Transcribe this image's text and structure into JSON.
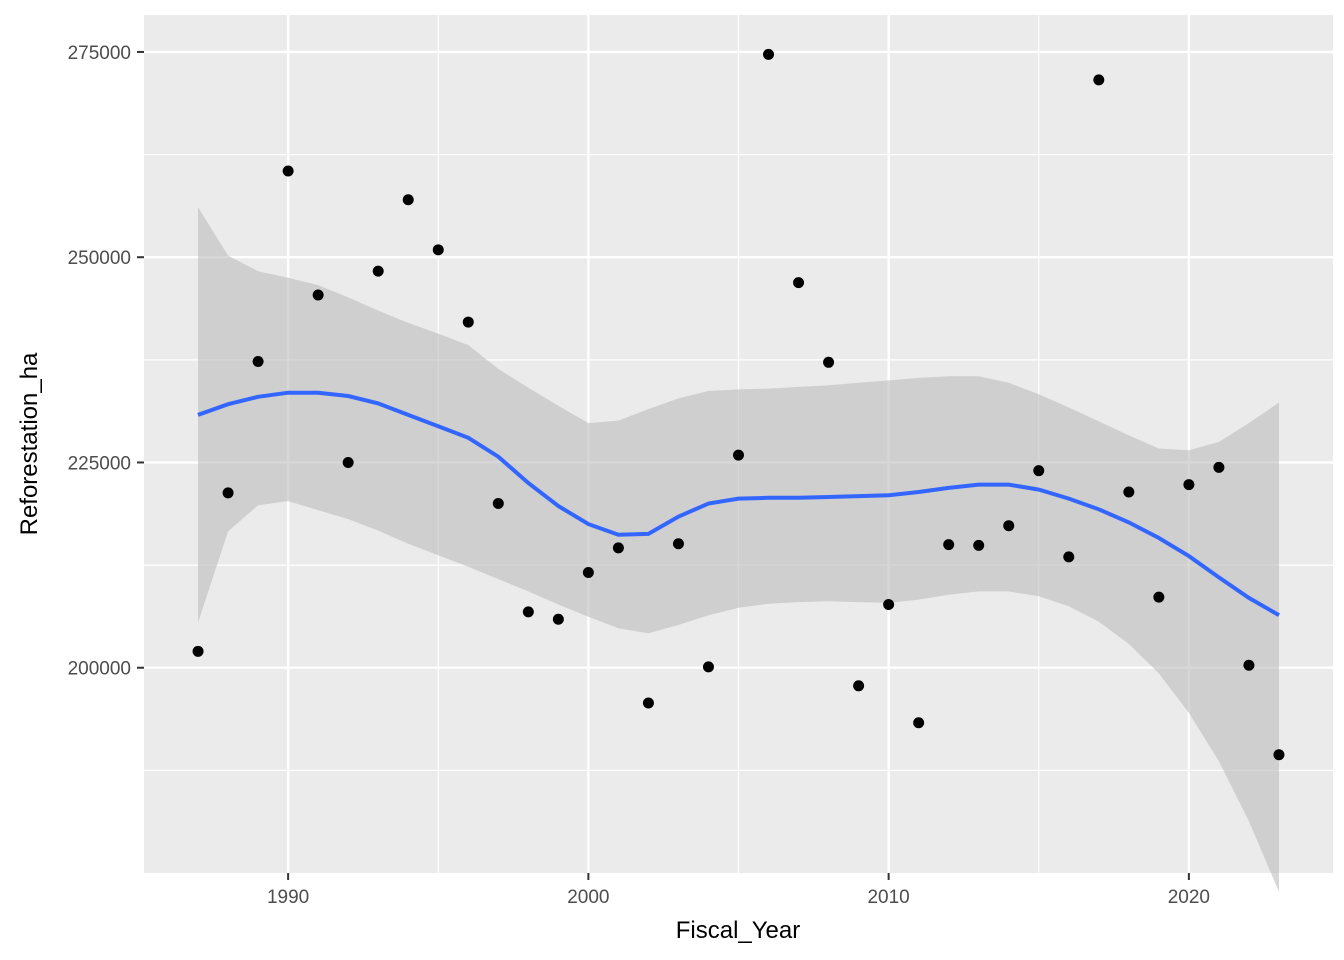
{
  "chart_data": {
    "type": "scatter",
    "title": "",
    "xlabel": "Fiscal_Year",
    "ylabel": "Reforestation_ha",
    "xlim": [
      1985.2,
      2024.8
    ],
    "ylim": [
      175000,
      279500
    ],
    "x_ticks": [
      1990,
      2000,
      2010,
      2020
    ],
    "y_ticks": [
      200000,
      225000,
      250000,
      275000
    ],
    "x_tick_labels": [
      "1990",
      "2000",
      "2010",
      "2020"
    ],
    "y_tick_labels": [
      "200000",
      "225000",
      "250000",
      "275000"
    ],
    "grid": true,
    "colors": {
      "panel": "#ebebeb",
      "grid": "#ffffff",
      "points": "#000000",
      "smooth_line": "#3366ff",
      "ribbon": "#bdbdbd"
    },
    "points": {
      "x": [
        1987,
        1988,
        1989,
        1990,
        1991,
        1992,
        1993,
        1994,
        1995,
        1996,
        1997,
        1998,
        1999,
        2000,
        2001,
        2002,
        2003,
        2004,
        2005,
        2006,
        2007,
        2008,
        2009,
        2010,
        2011,
        2012,
        2013,
        2014,
        2015,
        2016,
        2017,
        2018,
        2019,
        2020,
        2021,
        2022,
        2023
      ],
      "y": [
        202000,
        221300,
        237300,
        260500,
        245400,
        225000,
        248300,
        257000,
        250900,
        242100,
        220000,
        206800,
        205900,
        211600,
        214600,
        195700,
        215100,
        200100,
        225900,
        274700,
        246900,
        237200,
        197800,
        207700,
        193300,
        215000,
        214900,
        217300,
        224000,
        213500,
        271600,
        221400,
        208600,
        222300,
        224400,
        200300,
        189400
      ]
    },
    "smooth": {
      "x": [
        1987,
        1988,
        1989,
        1990,
        1991,
        1992,
        1993,
        1994,
        1995,
        1996,
        1997,
        1998,
        1999,
        2000,
        2001,
        2002,
        2003,
        2004,
        2005,
        2006,
        2007,
        2008,
        2009,
        2010,
        2011,
        2012,
        2013,
        2014,
        2015,
        2016,
        2017,
        2018,
        2019,
        2020,
        2021,
        2022,
        2023
      ],
      "y": [
        230800,
        232100,
        233000,
        233500,
        233500,
        233100,
        232200,
        230800,
        229400,
        228000,
        225700,
        222500,
        219700,
        217500,
        216200,
        216300,
        218400,
        220000,
        220600,
        220700,
        220700,
        220800,
        220900,
        221000,
        221400,
        221900,
        222300,
        222300,
        221700,
        220600,
        219300,
        217700,
        215800,
        213600,
        211000,
        208500,
        206400
      ],
      "lower": [
        205500,
        216600,
        219800,
        220300,
        219200,
        218100,
        216700,
        215100,
        213700,
        212300,
        210800,
        209300,
        207700,
        206200,
        204800,
        204200,
        205200,
        206400,
        207300,
        207800,
        208000,
        208100,
        208000,
        207900,
        208300,
        208900,
        209300,
        209300,
        208700,
        207500,
        205600,
        202900,
        199300,
        194500,
        188600,
        181300,
        172700
      ],
      "upper": [
        256100,
        250200,
        248300,
        247500,
        246600,
        245100,
        243500,
        242000,
        240700,
        239300,
        236400,
        234100,
        231900,
        229800,
        230100,
        231500,
        232800,
        233700,
        233900,
        234000,
        234200,
        234400,
        234700,
        235000,
        235300,
        235500,
        235500,
        234700,
        233300,
        231700,
        230000,
        228300,
        226700,
        226500,
        227500,
        229800,
        232300
      ]
    }
  }
}
